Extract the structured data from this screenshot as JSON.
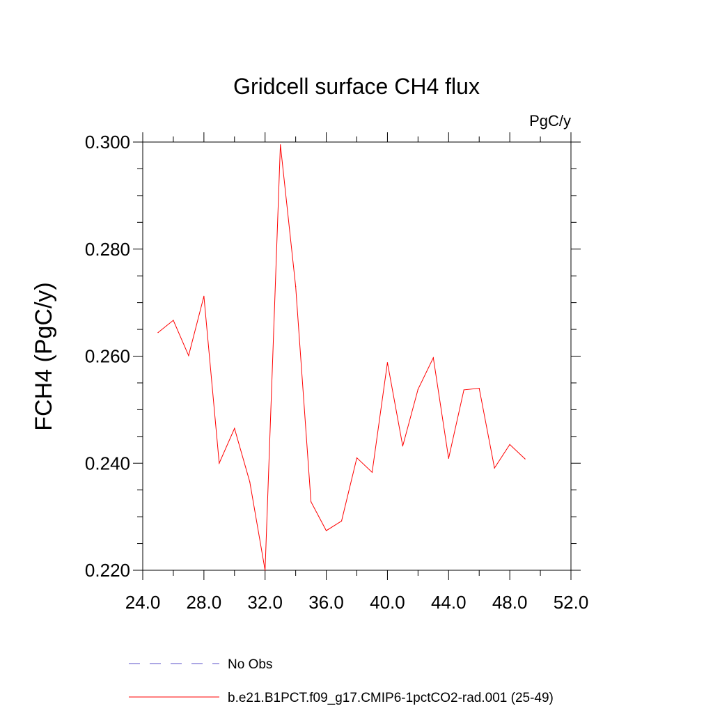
{
  "chart_data": {
    "type": "line",
    "title": "Gridcell surface CH4 flux",
    "units_label": "PgC/y",
    "ylabel": "FCH4  (PgC/y)",
    "xlabel": "",
    "xlim": [
      24,
      52
    ],
    "ylim": [
      0.22,
      0.3
    ],
    "x_ticks": [
      "24.0",
      "28.0",
      "32.0",
      "36.0",
      "40.0",
      "44.0",
      "48.0",
      "52.0"
    ],
    "y_ticks": [
      "0.220",
      "0.240",
      "0.260",
      "0.280",
      "0.300"
    ],
    "grid": false,
    "legend_position": "bottom",
    "series": [
      {
        "name": "No Obs",
        "color": "#5a4fc8",
        "dashed": true,
        "x": [],
        "y": []
      },
      {
        "name": "b.e21.B1PCT.f09_g17.CMIP6-1pctCO2-rad.001 (25-49)",
        "color": "#ff0000",
        "dashed": false,
        "x": [
          25,
          26,
          27,
          28,
          29,
          30,
          31,
          32,
          33,
          34,
          35,
          36,
          37,
          38,
          39,
          40,
          41,
          42,
          43,
          44,
          45,
          46,
          47,
          48,
          49
        ],
        "y": [
          0.2644,
          0.2667,
          0.2601,
          0.2712,
          0.24,
          0.2465,
          0.2365,
          0.22,
          0.2995,
          0.273,
          0.2328,
          0.2274,
          0.2292,
          0.241,
          0.2383,
          0.2588,
          0.2432,
          0.2538,
          0.2597,
          0.2409,
          0.2537,
          0.254,
          0.2391,
          0.2435,
          0.2408
        ]
      }
    ]
  }
}
